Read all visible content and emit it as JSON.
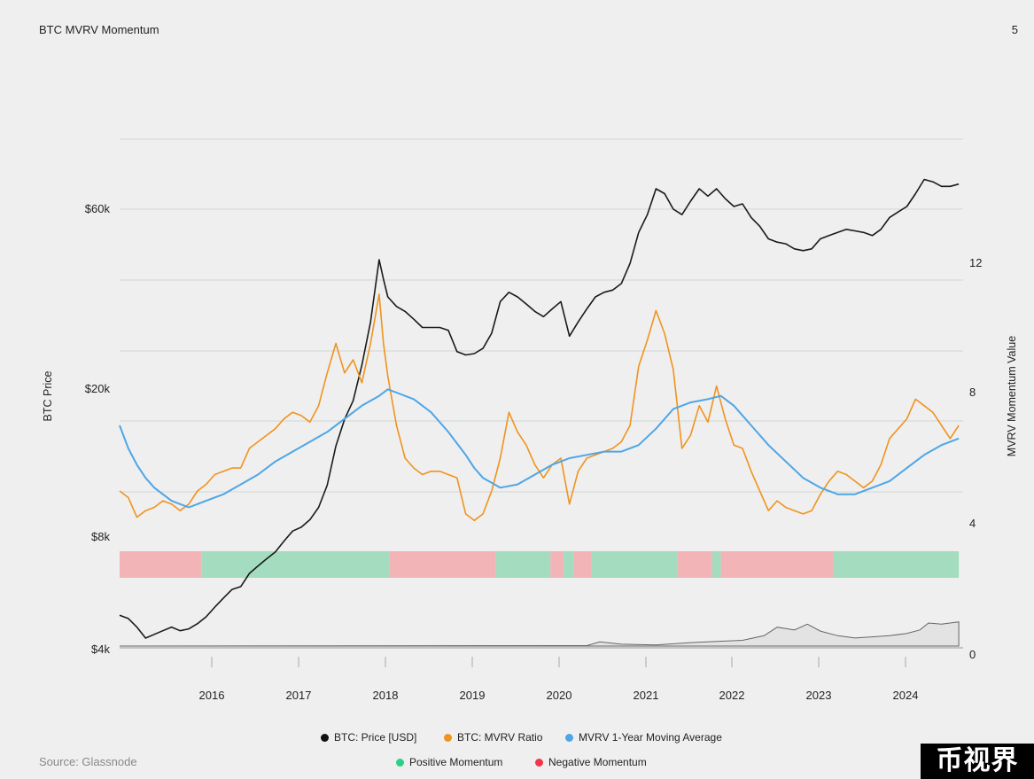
{
  "header": {
    "title": "BTC MVRV Momentum",
    "page_number": "5"
  },
  "source": "Source: Glassnode",
  "watermark": "币视界",
  "colors": {
    "price": "#1a1a1a",
    "mvrv": "#f0931e",
    "ma": "#4ea6e6",
    "positive": "#a3dcbe",
    "negative": "#f2b4b6",
    "positive_legend": "#2ecf86",
    "negative_legend": "#f0384c",
    "grid": "#cfd7d3"
  },
  "legend": [
    {
      "label": "BTC: Price [USD]",
      "color": "#111111"
    },
    {
      "label": "BTC: MVRV Ratio",
      "color": "#f0931e"
    },
    {
      "label": "MVRV 1-Year Moving Average",
      "color": "#4ea6e6"
    },
    {
      "label": "Positive Momentum",
      "color": "#2ecf86"
    },
    {
      "label": "Negative Momentum",
      "color": "#f0384c"
    }
  ],
  "chart_data": {
    "type": "line",
    "title": "BTC MVRV Momentum",
    "y_left_label": "BTC Price",
    "y_right_label": "MVRV Momentum Value",
    "y_left_scale": "log",
    "y_left_ticks": [
      {
        "label": "$4k",
        "value": 4000
      },
      {
        "label": "$8k",
        "value": 8000
      },
      {
        "label": "$20k",
        "value": 20000
      },
      {
        "label": "$60k",
        "value": 60000
      }
    ],
    "y_right_ticks": [
      0,
      4,
      8,
      12
    ],
    "x_ticks": [
      "2016",
      "2017",
      "2018",
      "2019",
      "2020",
      "2021",
      "2022",
      "2023",
      "2024"
    ],
    "x_range": [
      2015.0,
      2024.75
    ],
    "grid": true,
    "series": [
      {
        "name": "BTC: Price [USD]",
        "axis": "left",
        "points": [
          [
            2015.0,
            4950
          ],
          [
            2015.1,
            4850
          ],
          [
            2015.2,
            4600
          ],
          [
            2015.3,
            4300
          ],
          [
            2015.4,
            4400
          ],
          [
            2015.5,
            4500
          ],
          [
            2015.6,
            4600
          ],
          [
            2015.7,
            4500
          ],
          [
            2015.8,
            4550
          ],
          [
            2015.9,
            4700
          ],
          [
            2016.0,
            4900
          ],
          [
            2016.1,
            5200
          ],
          [
            2016.2,
            5500
          ],
          [
            2016.3,
            5800
          ],
          [
            2016.4,
            5900
          ],
          [
            2016.5,
            6400
          ],
          [
            2016.6,
            6700
          ],
          [
            2016.7,
            7000
          ],
          [
            2016.8,
            7300
          ],
          [
            2016.9,
            7800
          ],
          [
            2017.0,
            8300
          ],
          [
            2017.1,
            8500
          ],
          [
            2017.2,
            8900
          ],
          [
            2017.3,
            9600
          ],
          [
            2017.4,
            11000
          ],
          [
            2017.5,
            14000
          ],
          [
            2017.6,
            16500
          ],
          [
            2017.7,
            18500
          ],
          [
            2017.8,
            23000
          ],
          [
            2017.9,
            30000
          ],
          [
            2018.0,
            44000
          ],
          [
            2018.05,
            39000
          ],
          [
            2018.1,
            35000
          ],
          [
            2018.2,
            33000
          ],
          [
            2018.3,
            32000
          ],
          [
            2018.4,
            30500
          ],
          [
            2018.5,
            29000
          ],
          [
            2018.6,
            29000
          ],
          [
            2018.7,
            29000
          ],
          [
            2018.8,
            28500
          ],
          [
            2018.9,
            25000
          ],
          [
            2019.0,
            24500
          ],
          [
            2019.1,
            24700
          ],
          [
            2019.2,
            25500
          ],
          [
            2019.3,
            28000
          ],
          [
            2019.4,
            34000
          ],
          [
            2019.5,
            36000
          ],
          [
            2019.6,
            35000
          ],
          [
            2019.7,
            33500
          ],
          [
            2019.8,
            32000
          ],
          [
            2019.9,
            31000
          ],
          [
            2020.0,
            32500
          ],
          [
            2020.1,
            34000
          ],
          [
            2020.2,
            27500
          ],
          [
            2020.3,
            30000
          ],
          [
            2020.4,
            32500
          ],
          [
            2020.5,
            35000
          ],
          [
            2020.6,
            36000
          ],
          [
            2020.7,
            36500
          ],
          [
            2020.8,
            38000
          ],
          [
            2020.9,
            43000
          ],
          [
            2021.0,
            52000
          ],
          [
            2021.1,
            58000
          ],
          [
            2021.2,
            68000
          ],
          [
            2021.3,
            66000
          ],
          [
            2021.4,
            60000
          ],
          [
            2021.5,
            58000
          ],
          [
            2021.6,
            63000
          ],
          [
            2021.7,
            68000
          ],
          [
            2021.8,
            65000
          ],
          [
            2021.9,
            68000
          ],
          [
            2022.0,
            64000
          ],
          [
            2022.1,
            61000
          ],
          [
            2022.2,
            62000
          ],
          [
            2022.3,
            57000
          ],
          [
            2022.4,
            54000
          ],
          [
            2022.5,
            50000
          ],
          [
            2022.6,
            49000
          ],
          [
            2022.7,
            48500
          ],
          [
            2022.8,
            47000
          ],
          [
            2022.9,
            46500
          ],
          [
            2023.0,
            47000
          ],
          [
            2023.1,
            50000
          ],
          [
            2023.2,
            51000
          ],
          [
            2023.3,
            52000
          ],
          [
            2023.4,
            53000
          ],
          [
            2023.5,
            52500
          ],
          [
            2023.6,
            52000
          ],
          [
            2023.7,
            51000
          ],
          [
            2023.8,
            53000
          ],
          [
            2023.9,
            57000
          ],
          [
            2024.0,
            59000
          ],
          [
            2024.1,
            61000
          ],
          [
            2024.2,
            66000
          ],
          [
            2024.3,
            72000
          ],
          [
            2024.4,
            71000
          ],
          [
            2024.5,
            69000
          ],
          [
            2024.6,
            69000
          ],
          [
            2024.7,
            70000
          ]
        ]
      },
      {
        "name": "BTC: MVRV Ratio",
        "axis": "right",
        "points": [
          [
            2015.0,
            5.0
          ],
          [
            2015.1,
            4.8
          ],
          [
            2015.2,
            4.2
          ],
          [
            2015.3,
            4.4
          ],
          [
            2015.4,
            4.5
          ],
          [
            2015.5,
            4.7
          ],
          [
            2015.6,
            4.6
          ],
          [
            2015.7,
            4.4
          ],
          [
            2015.8,
            4.6
          ],
          [
            2015.9,
            5.0
          ],
          [
            2016.0,
            5.2
          ],
          [
            2016.1,
            5.5
          ],
          [
            2016.2,
            5.6
          ],
          [
            2016.3,
            5.7
          ],
          [
            2016.4,
            5.7
          ],
          [
            2016.5,
            6.3
          ],
          [
            2016.6,
            6.5
          ],
          [
            2016.7,
            6.7
          ],
          [
            2016.8,
            6.9
          ],
          [
            2016.9,
            7.2
          ],
          [
            2017.0,
            7.4
          ],
          [
            2017.1,
            7.3
          ],
          [
            2017.2,
            7.1
          ],
          [
            2017.3,
            7.6
          ],
          [
            2017.4,
            8.6
          ],
          [
            2017.5,
            9.5
          ],
          [
            2017.6,
            8.6
          ],
          [
            2017.7,
            9.0
          ],
          [
            2017.8,
            8.3
          ],
          [
            2017.9,
            9.5
          ],
          [
            2018.0,
            11.0
          ],
          [
            2018.05,
            9.5
          ],
          [
            2018.1,
            8.5
          ],
          [
            2018.2,
            7.0
          ],
          [
            2018.3,
            6.0
          ],
          [
            2018.4,
            5.7
          ],
          [
            2018.5,
            5.5
          ],
          [
            2018.6,
            5.6
          ],
          [
            2018.7,
            5.6
          ],
          [
            2018.8,
            5.5
          ],
          [
            2018.9,
            5.4
          ],
          [
            2019.0,
            4.3
          ],
          [
            2019.1,
            4.1
          ],
          [
            2019.2,
            4.3
          ],
          [
            2019.3,
            5.0
          ],
          [
            2019.4,
            6.0
          ],
          [
            2019.5,
            7.4
          ],
          [
            2019.6,
            6.8
          ],
          [
            2019.7,
            6.4
          ],
          [
            2019.8,
            5.8
          ],
          [
            2019.9,
            5.4
          ],
          [
            2020.0,
            5.8
          ],
          [
            2020.1,
            6.0
          ],
          [
            2020.2,
            4.6
          ],
          [
            2020.3,
            5.6
          ],
          [
            2020.4,
            6.0
          ],
          [
            2020.5,
            6.1
          ],
          [
            2020.6,
            6.2
          ],
          [
            2020.7,
            6.3
          ],
          [
            2020.8,
            6.5
          ],
          [
            2020.9,
            7.0
          ],
          [
            2021.0,
            8.8
          ],
          [
            2021.1,
            9.6
          ],
          [
            2021.2,
            10.5
          ],
          [
            2021.3,
            9.8
          ],
          [
            2021.4,
            8.7
          ],
          [
            2021.5,
            6.3
          ],
          [
            2021.6,
            6.7
          ],
          [
            2021.7,
            7.6
          ],
          [
            2021.8,
            7.1
          ],
          [
            2021.9,
            8.2
          ],
          [
            2022.0,
            7.2
          ],
          [
            2022.1,
            6.4
          ],
          [
            2022.2,
            6.3
          ],
          [
            2022.3,
            5.6
          ],
          [
            2022.4,
            5.0
          ],
          [
            2022.5,
            4.4
          ],
          [
            2022.6,
            4.7
          ],
          [
            2022.7,
            4.5
          ],
          [
            2022.8,
            4.4
          ],
          [
            2022.9,
            4.3
          ],
          [
            2023.0,
            4.4
          ],
          [
            2023.1,
            4.9
          ],
          [
            2023.2,
            5.3
          ],
          [
            2023.3,
            5.6
          ],
          [
            2023.4,
            5.5
          ],
          [
            2023.5,
            5.3
          ],
          [
            2023.6,
            5.1
          ],
          [
            2023.7,
            5.3
          ],
          [
            2023.8,
            5.8
          ],
          [
            2023.9,
            6.6
          ],
          [
            2024.0,
            6.9
          ],
          [
            2024.1,
            7.2
          ],
          [
            2024.2,
            7.8
          ],
          [
            2024.3,
            7.6
          ],
          [
            2024.4,
            7.4
          ],
          [
            2024.5,
            7.0
          ],
          [
            2024.6,
            6.6
          ],
          [
            2024.7,
            7.0
          ]
        ]
      },
      {
        "name": "MVRV 1-Year Moving Average",
        "axis": "right",
        "points": [
          [
            2015.0,
            7.0
          ],
          [
            2015.1,
            6.3
          ],
          [
            2015.2,
            5.8
          ],
          [
            2015.3,
            5.4
          ],
          [
            2015.4,
            5.1
          ],
          [
            2015.5,
            4.9
          ],
          [
            2015.6,
            4.7
          ],
          [
            2015.7,
            4.6
          ],
          [
            2015.8,
            4.5
          ],
          [
            2015.9,
            4.6
          ],
          [
            2016.0,
            4.7
          ],
          [
            2016.2,
            4.9
          ],
          [
            2016.4,
            5.2
          ],
          [
            2016.6,
            5.5
          ],
          [
            2016.8,
            5.9
          ],
          [
            2017.0,
            6.2
          ],
          [
            2017.2,
            6.5
          ],
          [
            2017.4,
            6.8
          ],
          [
            2017.6,
            7.2
          ],
          [
            2017.8,
            7.6
          ],
          [
            2018.0,
            7.9
          ],
          [
            2018.1,
            8.1
          ],
          [
            2018.2,
            8.0
          ],
          [
            2018.4,
            7.8
          ],
          [
            2018.6,
            7.4
          ],
          [
            2018.8,
            6.8
          ],
          [
            2019.0,
            6.1
          ],
          [
            2019.1,
            5.7
          ],
          [
            2019.2,
            5.4
          ],
          [
            2019.4,
            5.1
          ],
          [
            2019.6,
            5.2
          ],
          [
            2019.8,
            5.5
          ],
          [
            2020.0,
            5.8
          ],
          [
            2020.2,
            6.0
          ],
          [
            2020.4,
            6.1
          ],
          [
            2020.6,
            6.2
          ],
          [
            2020.8,
            6.2
          ],
          [
            2021.0,
            6.4
          ],
          [
            2021.2,
            6.9
          ],
          [
            2021.4,
            7.5
          ],
          [
            2021.6,
            7.7
          ],
          [
            2021.8,
            7.8
          ],
          [
            2021.95,
            7.9
          ],
          [
            2022.1,
            7.6
          ],
          [
            2022.3,
            7.0
          ],
          [
            2022.5,
            6.4
          ],
          [
            2022.7,
            5.9
          ],
          [
            2022.9,
            5.4
          ],
          [
            2023.1,
            5.1
          ],
          [
            2023.3,
            4.9
          ],
          [
            2023.5,
            4.9
          ],
          [
            2023.7,
            5.1
          ],
          [
            2023.9,
            5.3
          ],
          [
            2024.1,
            5.7
          ],
          [
            2024.3,
            6.1
          ],
          [
            2024.5,
            6.4
          ],
          [
            2024.7,
            6.6
          ]
        ]
      }
    ],
    "momentum_segments": [
      {
        "start": 2015.0,
        "end": 2015.95,
        "state": "Negative Momentum"
      },
      {
        "start": 2015.95,
        "end": 2018.12,
        "state": "Positive Momentum"
      },
      {
        "start": 2018.12,
        "end": 2019.35,
        "state": "Negative Momentum"
      },
      {
        "start": 2019.35,
        "end": 2019.98,
        "state": "Positive Momentum"
      },
      {
        "start": 2019.98,
        "end": 2020.13,
        "state": "Negative Momentum"
      },
      {
        "start": 2020.13,
        "end": 2020.25,
        "state": "Positive Momentum"
      },
      {
        "start": 2020.25,
        "end": 2020.45,
        "state": "Negative Momentum"
      },
      {
        "start": 2020.45,
        "end": 2021.45,
        "state": "Positive Momentum"
      },
      {
        "start": 2021.45,
        "end": 2021.85,
        "state": "Negative Momentum"
      },
      {
        "start": 2021.85,
        "end": 2021.95,
        "state": "Positive Momentum"
      },
      {
        "start": 2021.95,
        "end": 2023.25,
        "state": "Negative Momentum"
      },
      {
        "start": 2023.25,
        "end": 2024.7,
        "state": "Positive Momentum"
      }
    ],
    "momentum_value_area": [
      [
        2015.0,
        0
      ],
      [
        2020.4,
        0.02
      ],
      [
        2020.55,
        0.18
      ],
      [
        2020.8,
        0.08
      ],
      [
        2021.2,
        0.05
      ],
      [
        2021.4,
        0.1
      ],
      [
        2021.6,
        0.15
      ],
      [
        2021.9,
        0.2
      ],
      [
        2022.2,
        0.25
      ],
      [
        2022.45,
        0.45
      ],
      [
        2022.6,
        0.82
      ],
      [
        2022.8,
        0.7
      ],
      [
        2022.95,
        0.95
      ],
      [
        2023.1,
        0.65
      ],
      [
        2023.3,
        0.45
      ],
      [
        2023.5,
        0.35
      ],
      [
        2023.7,
        0.4
      ],
      [
        2023.9,
        0.45
      ],
      [
        2024.1,
        0.55
      ],
      [
        2024.25,
        0.7
      ],
      [
        2024.35,
        1.0
      ],
      [
        2024.5,
        0.95
      ],
      [
        2024.7,
        1.05
      ]
    ]
  }
}
